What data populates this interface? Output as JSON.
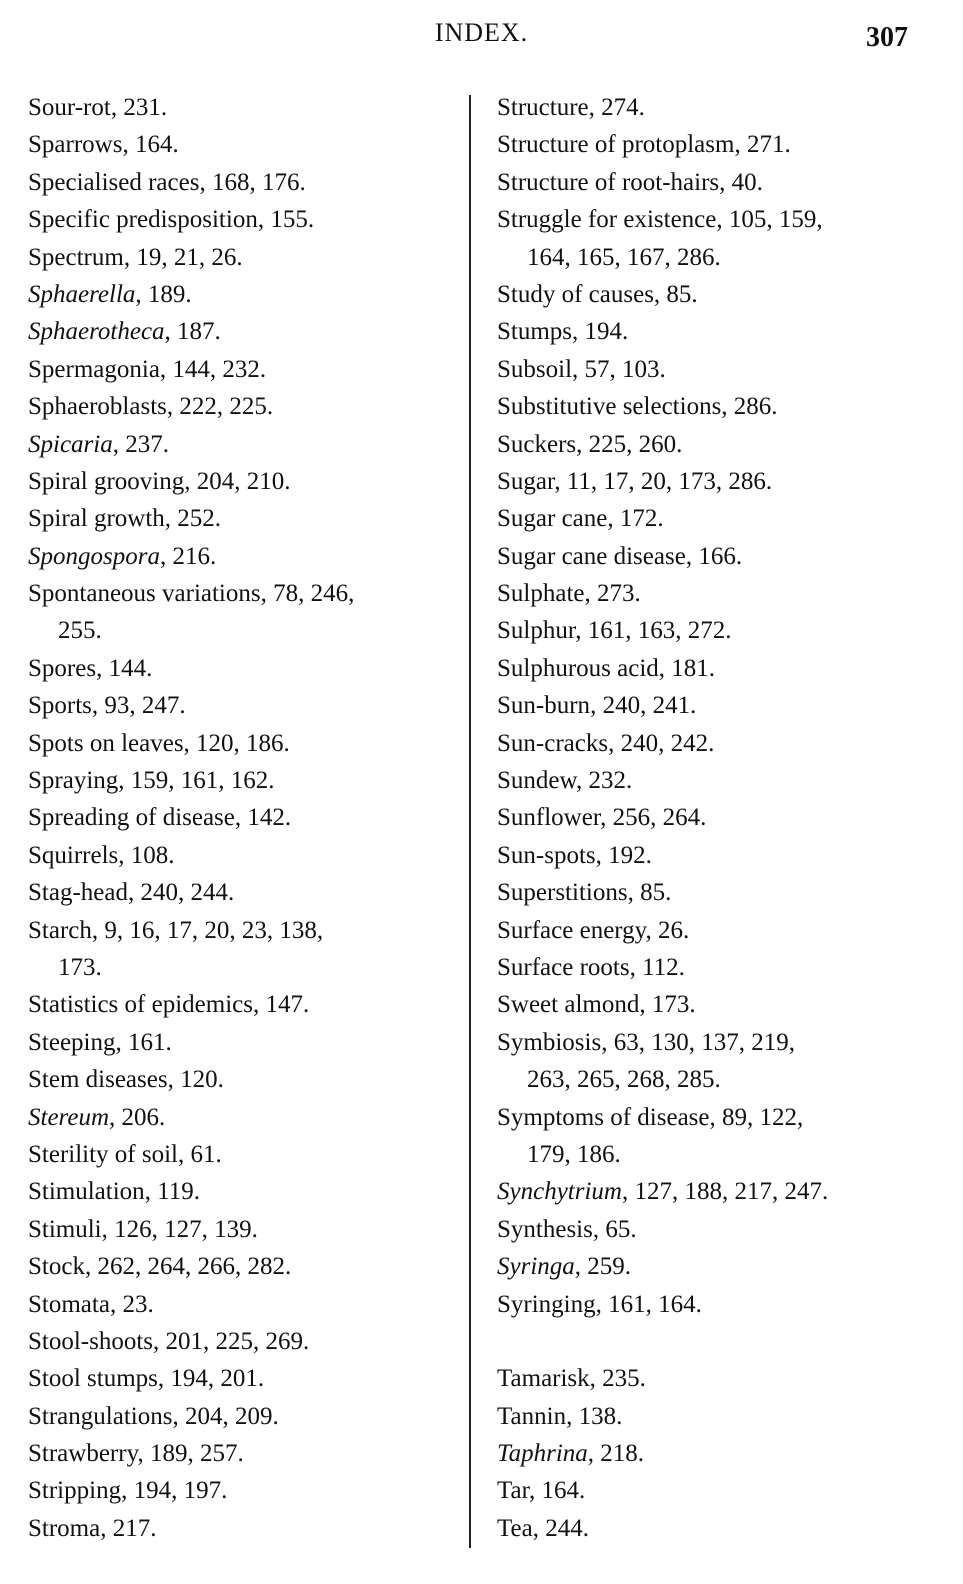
{
  "header": {
    "title": "INDEX.",
    "page_number": "307"
  },
  "columns": [
    {
      "entries": [
        {
          "term": "Sour-rot",
          "italic": false,
          "refs": "231."
        },
        {
          "term": "Sparrows",
          "italic": false,
          "refs": "164."
        },
        {
          "term": "Specialised races",
          "italic": false,
          "refs": "168, 176."
        },
        {
          "term": "Specific predisposition",
          "italic": false,
          "refs": "155."
        },
        {
          "term": "Spectrum",
          "italic": false,
          "refs": "19, 21, 26."
        },
        {
          "term": "Sphaerella",
          "italic": true,
          "refs": "189."
        },
        {
          "term": "Sphaerotheca",
          "italic": true,
          "refs": "187."
        },
        {
          "term": "Spermagonia",
          "italic": false,
          "refs": "144, 232."
        },
        {
          "term": "Sphaeroblasts",
          "italic": false,
          "refs": "222, 225."
        },
        {
          "term": "Spicaria",
          "italic": true,
          "refs": "237."
        },
        {
          "term": "Spiral grooving",
          "italic": false,
          "refs": "204, 210."
        },
        {
          "term": "Spiral growth",
          "italic": false,
          "refs": "252."
        },
        {
          "term": "Spongospora",
          "italic": true,
          "refs": "216."
        },
        {
          "term": "Spontaneous variations",
          "italic": false,
          "refs": "78, 246,",
          "cont": "255."
        },
        {
          "term": "Spores",
          "italic": false,
          "refs": "144."
        },
        {
          "term": "Sports",
          "italic": false,
          "refs": "93, 247."
        },
        {
          "term": "Spots on leaves",
          "italic": false,
          "refs": "120, 186."
        },
        {
          "term": "Spraying",
          "italic": false,
          "refs": "159, 161, 162."
        },
        {
          "term": "Spreading of disease",
          "italic": false,
          "refs": "142."
        },
        {
          "term": "Squirrels",
          "italic": false,
          "refs": "108."
        },
        {
          "term": "Stag-head",
          "italic": false,
          "refs": "240, 244."
        },
        {
          "term": "Starch",
          "italic": false,
          "refs": "9, 16, 17, 20, 23, 138,",
          "cont": "173."
        },
        {
          "term": "Statistics of epidemics",
          "italic": false,
          "refs": "147."
        },
        {
          "term": "Steeping",
          "italic": false,
          "refs": "161."
        },
        {
          "term": "Stem diseases",
          "italic": false,
          "refs": "120."
        },
        {
          "term": "Stereum",
          "italic": true,
          "refs": "206."
        },
        {
          "term": "Sterility of soil",
          "italic": false,
          "refs": "61."
        },
        {
          "term": "Stimulation",
          "italic": false,
          "refs": "119."
        },
        {
          "term": "Stimuli",
          "italic": false,
          "refs": "126, 127, 139."
        },
        {
          "term": "Stock",
          "italic": false,
          "refs": "262, 264, 266, 282."
        },
        {
          "term": "Stomata",
          "italic": false,
          "refs": "23."
        },
        {
          "term": "Stool-shoots",
          "italic": false,
          "refs": "201, 225, 269."
        },
        {
          "term": "Stool stumps",
          "italic": false,
          "refs": "194, 201."
        },
        {
          "term": "Strangulations",
          "italic": false,
          "refs": "204, 209."
        },
        {
          "term": "Strawberry",
          "italic": false,
          "refs": "189, 257."
        },
        {
          "term": "Stripping",
          "italic": false,
          "refs": "194, 197."
        },
        {
          "term": "Stroma",
          "italic": false,
          "refs": "217."
        }
      ]
    },
    {
      "entries": [
        {
          "term": "Structure",
          "italic": false,
          "refs": "274."
        },
        {
          "term": "Structure of protoplasm",
          "italic": false,
          "refs": "271."
        },
        {
          "term": "Structure of root-hairs",
          "italic": false,
          "refs": "40."
        },
        {
          "term": "Struggle for existence",
          "italic": false,
          "refs": "105, 159,",
          "cont": "164, 165, 167, 286."
        },
        {
          "term": "Study of causes",
          "italic": false,
          "refs": "85."
        },
        {
          "term": "Stumps",
          "italic": false,
          "refs": "194."
        },
        {
          "term": "Subsoil",
          "italic": false,
          "refs": "57, 103."
        },
        {
          "term": "Substitutive selections",
          "italic": false,
          "refs": "286."
        },
        {
          "term": "Suckers",
          "italic": false,
          "refs": "225, 260."
        },
        {
          "term": "Sugar",
          "italic": false,
          "refs": "11, 17, 20, 173, 286."
        },
        {
          "term": "Sugar cane",
          "italic": false,
          "refs": "172."
        },
        {
          "term": "Sugar cane disease",
          "italic": false,
          "refs": "166."
        },
        {
          "term": "Sulphate",
          "italic": false,
          "refs": "273."
        },
        {
          "term": "Sulphur",
          "italic": false,
          "refs": "161, 163, 272."
        },
        {
          "term": "Sulphurous acid",
          "italic": false,
          "refs": "181."
        },
        {
          "term": "Sun-burn",
          "italic": false,
          "refs": "240, 241."
        },
        {
          "term": "Sun-cracks",
          "italic": false,
          "refs": "240, 242."
        },
        {
          "term": "Sundew",
          "italic": false,
          "refs": "232."
        },
        {
          "term": "Sunflower",
          "italic": false,
          "refs": "256, 264."
        },
        {
          "term": "Sun-spots",
          "italic": false,
          "refs": "192."
        },
        {
          "term": "Superstitions",
          "italic": false,
          "refs": "85."
        },
        {
          "term": "Surface energy",
          "italic": false,
          "refs": "26."
        },
        {
          "term": "Surface roots",
          "italic": false,
          "refs": "112."
        },
        {
          "term": "Sweet almond",
          "italic": false,
          "refs": "173."
        },
        {
          "term": "Symbiosis",
          "italic": false,
          "refs": "63, 130, 137, 219,",
          "cont": "263, 265, 268, 285."
        },
        {
          "term": "Symptoms of disease",
          "italic": false,
          "refs": "89, 122,",
          "cont": "179, 186."
        },
        {
          "term": "Synchytrium",
          "italic": true,
          "refs": "127, 188, 217, 247."
        },
        {
          "term": "Synthesis",
          "italic": false,
          "refs": "65."
        },
        {
          "term": "Syringa",
          "italic": true,
          "refs": "259."
        },
        {
          "term": "Syringing",
          "italic": false,
          "refs": "161, 164."
        },
        {
          "blank": true
        },
        {
          "term": "Tamarisk",
          "italic": false,
          "refs": "235."
        },
        {
          "term": "Tannin",
          "italic": false,
          "refs": "138."
        },
        {
          "term": "Taphrina",
          "italic": true,
          "refs": "218."
        },
        {
          "term": "Tar",
          "italic": false,
          "refs": "164."
        },
        {
          "term": "Tea",
          "italic": false,
          "refs": "244."
        }
      ]
    }
  ]
}
